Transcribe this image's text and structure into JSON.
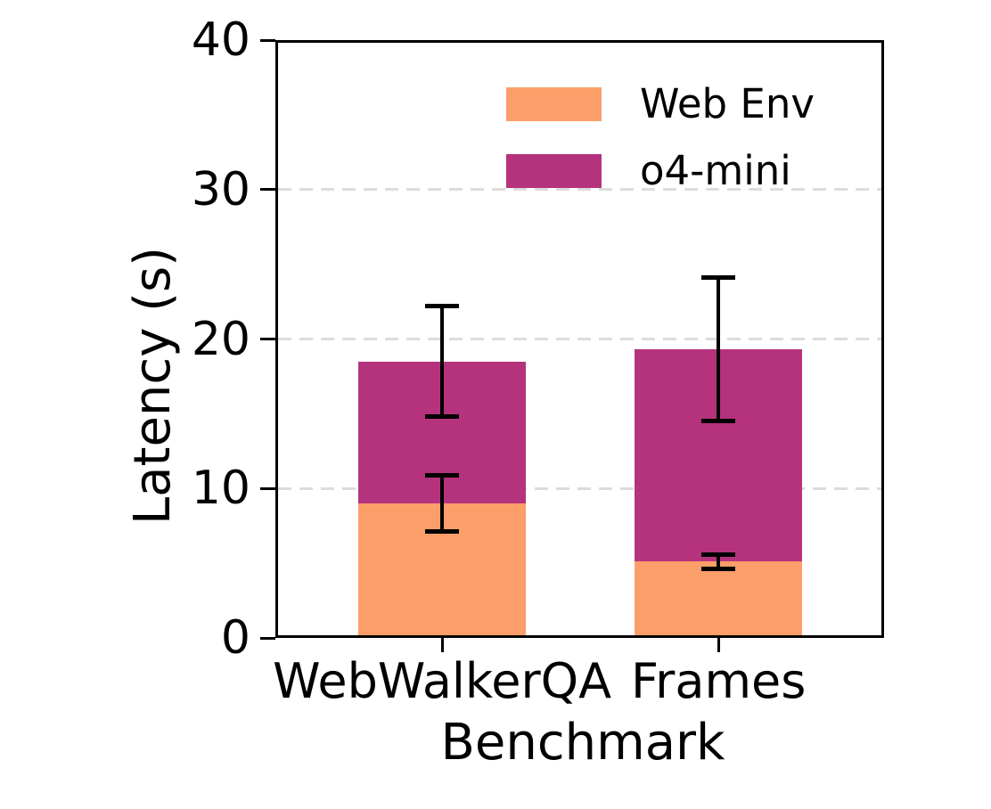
{
  "chart_data": {
    "type": "bar",
    "stacked": true,
    "title": "",
    "xlabel": "Benchmark",
    "ylabel": "Latency (s)",
    "categories": [
      "WebWalkerQA",
      "Frames"
    ],
    "series": [
      {
        "name": "Web Env",
        "color": "#FC9E6A",
        "values": [
          9.0,
          5.1
        ],
        "errors": [
          1.9,
          0.5
        ]
      },
      {
        "name": "o4-mini",
        "color": "#B5337D",
        "values": [
          9.5,
          14.2
        ]
      }
    ],
    "stack_totals": [
      18.5,
      19.3
    ],
    "stack_total_errors": [
      3.7,
      4.8
    ],
    "ylim": [
      0,
      40
    ],
    "yticks": [
      0,
      10,
      20,
      30,
      40
    ],
    "grid": {
      "axis": "y",
      "lines_at": [
        10,
        20,
        30
      ],
      "style": "dashed",
      "color": "#dcdcdc"
    },
    "legend": {
      "position": "upper right",
      "frame": false,
      "entries": [
        {
          "label": "Web Env",
          "color": "#FC9E6A"
        },
        {
          "label": "o4-mini",
          "color": "#B5337D"
        }
      ]
    },
    "error_bar_color": "#000000",
    "axis_color": "#000000",
    "background_color": "#ffffff",
    "layout_hints": {
      "bar_center_frac": [
        0.274,
        0.728
      ],
      "bar_width_frac": 0.275,
      "legend_position": "upper right"
    }
  }
}
